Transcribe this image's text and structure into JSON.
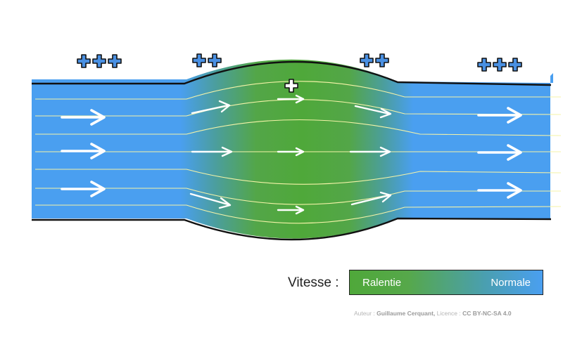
{
  "pressure_markers": {
    "inlet": "+++",
    "constriction_in": "++",
    "center": "+",
    "constriction_out": "++",
    "outlet": "+++"
  },
  "legend": {
    "title": "Vitesse :",
    "low_label": "Ralentie",
    "high_label": "Normale",
    "colors": {
      "slow": "#4fa83a",
      "normal": "#4a9ff0"
    }
  },
  "credit": {
    "author_prefix": "Auteur :",
    "author": "Guillaume Cerquant,",
    "license_prefix": "Licence :",
    "license": "CC BY-NC-SA 4.0"
  }
}
